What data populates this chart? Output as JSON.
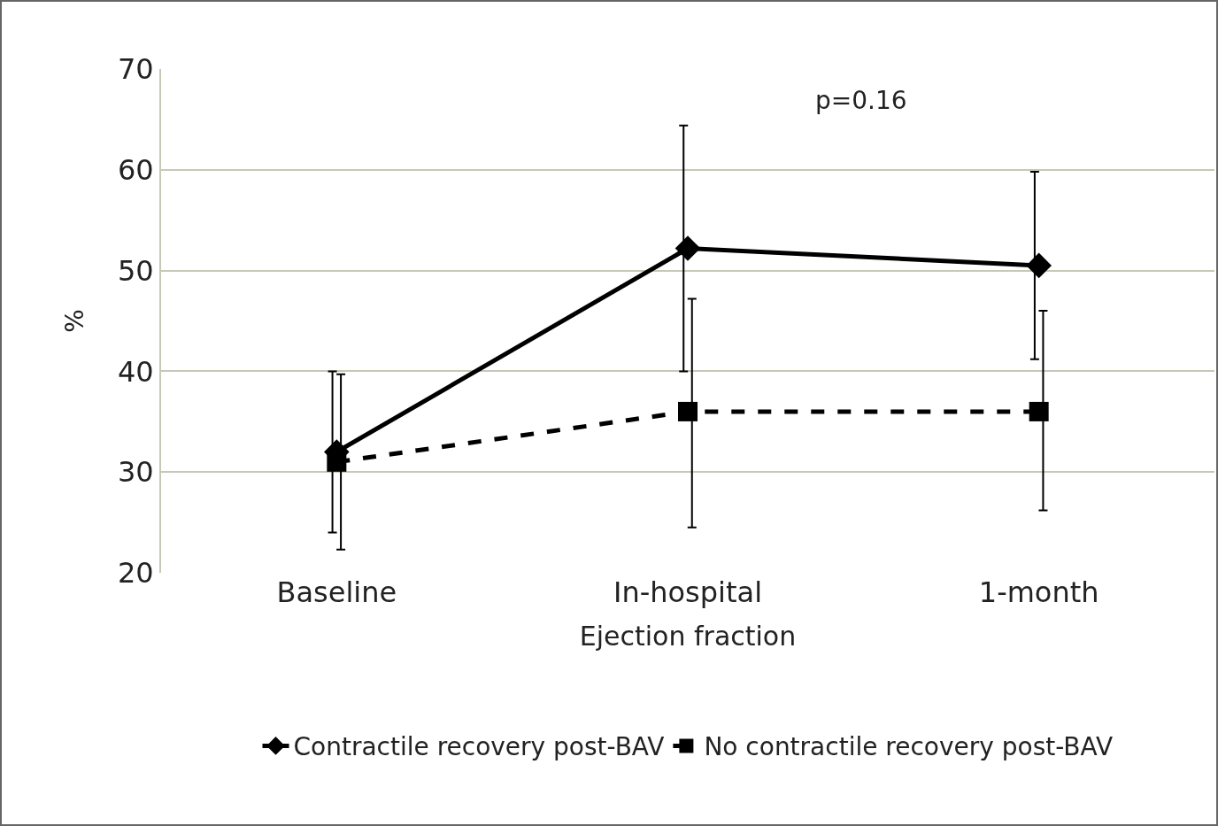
{
  "chart_data": {
    "type": "line",
    "xlabel": "Ejection fraction",
    "ylabel": "%",
    "categories": [
      "Baseline",
      "In-hospital",
      "1-month"
    ],
    "series": [
      {
        "name": "Contractile recovery post-BAV",
        "color": "#000000",
        "values": [
          32,
          52.2,
          50.5
        ],
        "errors": [
          [
            24,
            40
          ],
          [
            40,
            64.4
          ],
          [
            41.2,
            59.8
          ]
        ],
        "marker": "diamond",
        "line_style": "solid"
      },
      {
        "name": "No contractile recovery post-BAV",
        "color": "#000000",
        "values": [
          31,
          36,
          36
        ],
        "errors": [
          [
            22.3,
            39.7
          ],
          [
            24.5,
            47.2
          ],
          [
            26.2,
            46
          ]
        ],
        "marker": "square",
        "line_style": "dashed"
      }
    ],
    "ylim": [
      20,
      70
    ],
    "yticks": [
      20,
      30,
      40,
      50,
      60,
      70
    ],
    "grid": "y",
    "legend": "bottom",
    "annotations": [
      "p=0.16"
    ]
  }
}
